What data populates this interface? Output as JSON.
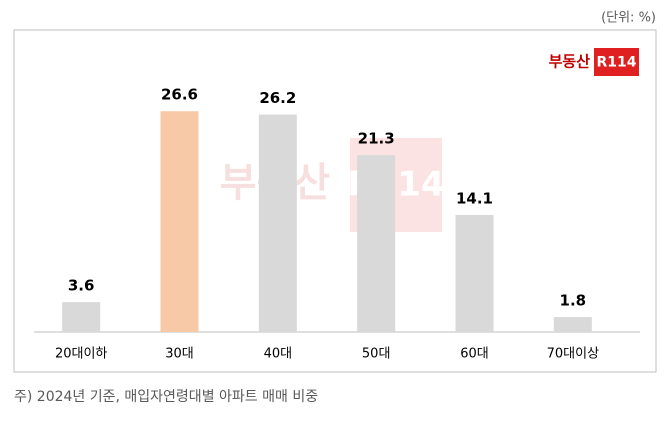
{
  "chart_data": {
    "type": "bar",
    "unit": "(단위: %)",
    "logo": {
      "name": "부동산",
      "badge": "R114"
    },
    "categories": [
      "20대이하",
      "30대",
      "40대",
      "50대",
      "60대",
      "70대이상"
    ],
    "values": [
      3.6,
      26.6,
      26.2,
      21.3,
      14.1,
      1.8
    ],
    "colors": [
      "#d9d9d9",
      "#f7c9a7",
      "#d9d9d9",
      "#d9d9d9",
      "#d9d9d9",
      "#d9d9d9"
    ],
    "note": "주) 2024년 기준, 매입자연령대별 아파트 매매 비중"
  }
}
